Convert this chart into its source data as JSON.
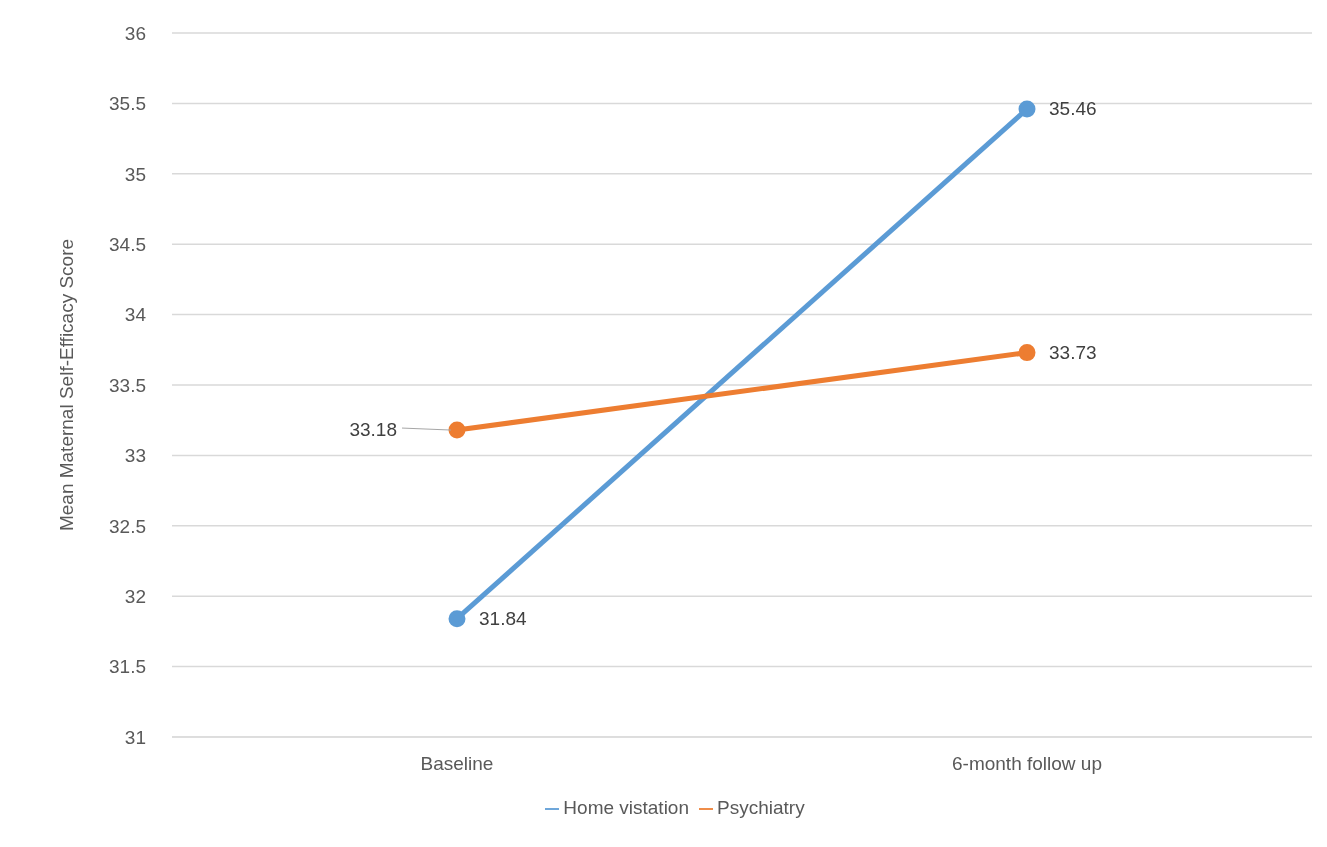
{
  "chart_data": {
    "type": "line",
    "ylabel": "Mean Maternal Self-Efficacy Score",
    "categories": [
      "Baseline",
      "6-month follow up"
    ],
    "series": [
      {
        "name": "Home vistation",
        "color": "#5b9bd5",
        "values": [
          31.84,
          35.46
        ]
      },
      {
        "name": "Psychiatry",
        "color": "#ed7d31",
        "values": [
          33.18,
          33.73
        ]
      }
    ],
    "ylim": [
      31,
      36
    ],
    "yticks": [
      31,
      31.5,
      32,
      32.5,
      33,
      33.5,
      34,
      34.5,
      35,
      35.5,
      36
    ],
    "grid": "y",
    "legend": "bottom",
    "marker": "circle",
    "line_style": "solid",
    "data_labels": true
  }
}
